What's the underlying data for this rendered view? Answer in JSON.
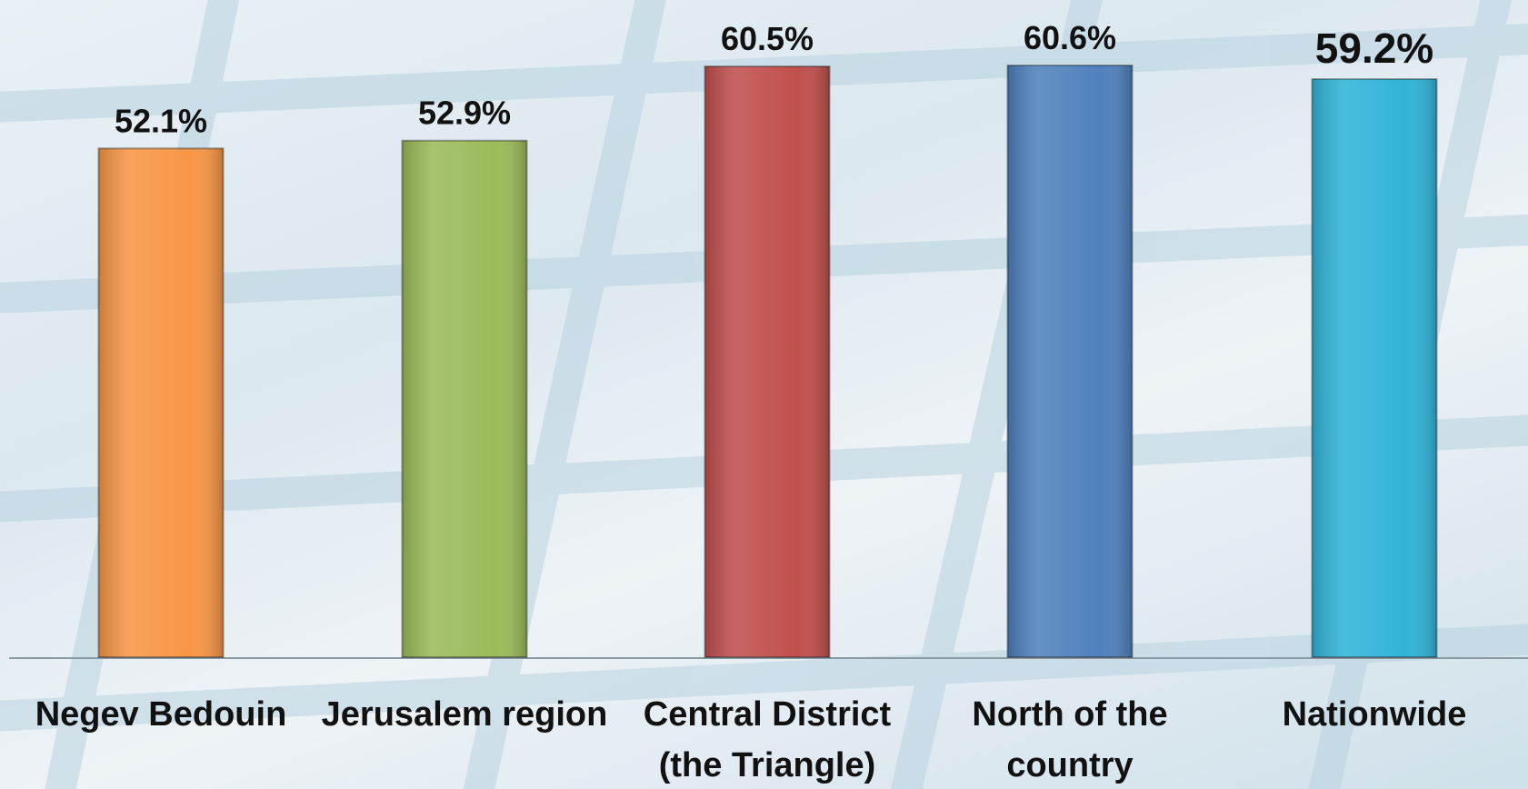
{
  "chart_data": {
    "type": "bar",
    "categories": [
      "Negev Bedouin",
      "Jerusalem region",
      "Central District (the Triangle)",
      "North of the country",
      "Nationwide"
    ],
    "values": [
      52.1,
      52.9,
      60.5,
      60.6,
      59.2
    ],
    "value_labels": [
      "52.1%",
      "52.9%",
      "60.5%",
      "60.6%",
      "59.2%"
    ],
    "colors": [
      "#f79646",
      "#9bbb59",
      "#c0504d",
      "#4f81bd",
      "#31b4d8"
    ]
  }
}
